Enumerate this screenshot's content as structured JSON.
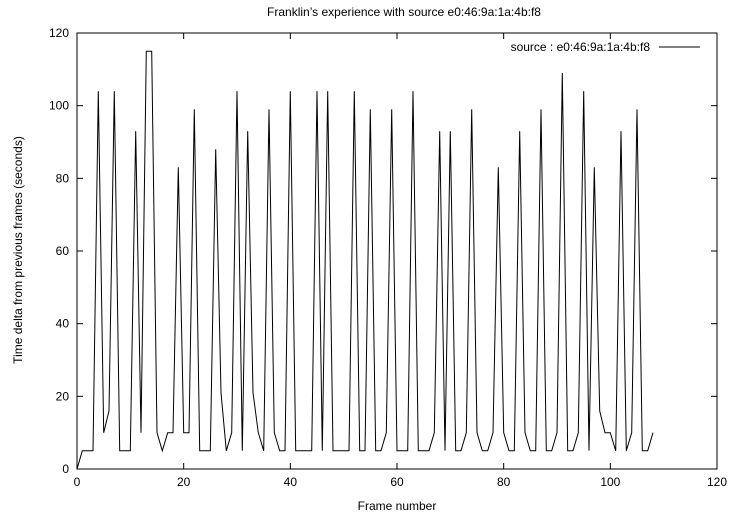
{
  "chart_data": {
    "type": "line",
    "title": "Franklin’s experience with source e0:46:9a:1a:4b:f8",
    "xlabel": "Frame number",
    "ylabel": "Time delta from previous frames (seconds)",
    "xlim": [
      0,
      120
    ],
    "ylim": [
      0,
      120
    ],
    "xticks": [
      0,
      20,
      40,
      60,
      80,
      100,
      120
    ],
    "yticks": [
      0,
      20,
      40,
      60,
      80,
      100,
      120
    ],
    "grid": false,
    "legend_position": "top-right",
    "series": [
      {
        "name": "source : e0:46:9a:1a:4b:f8",
        "color": "#000000",
        "x": [
          0,
          1,
          2,
          3,
          4,
          5,
          6,
          7,
          8,
          9,
          10,
          11,
          12,
          13,
          14,
          15,
          16,
          17,
          18,
          19,
          20,
          21,
          22,
          23,
          24,
          25,
          26,
          27,
          28,
          29,
          30,
          31,
          32,
          33,
          34,
          35,
          36,
          37,
          38,
          39,
          40,
          41,
          42,
          43,
          44,
          45,
          46,
          47,
          48,
          49,
          50,
          51,
          52,
          53,
          54,
          55,
          56,
          57,
          58,
          59,
          60,
          61,
          62,
          63,
          64,
          65,
          66,
          67,
          68,
          69,
          70,
          71,
          72,
          73,
          74,
          75,
          76,
          77,
          78,
          79,
          80,
          81,
          82,
          83,
          84,
          85,
          86,
          87,
          88,
          89,
          90,
          91,
          92,
          93,
          94,
          95,
          96,
          97,
          98,
          99,
          100,
          101,
          102,
          103,
          104,
          105,
          106,
          107,
          108
        ],
        "y": [
          0,
          5,
          5,
          5,
          104,
          10,
          16,
          104,
          5,
          5,
          5,
          93,
          10,
          115,
          115,
          10,
          5,
          10,
          10,
          83,
          10,
          10,
          99,
          5,
          5,
          5,
          88,
          21,
          5,
          10,
          104,
          5,
          93,
          21,
          10,
          5,
          99,
          10,
          5,
          5,
          104,
          5,
          5,
          5,
          5,
          104,
          5,
          104,
          5,
          5,
          5,
          5,
          104,
          5,
          5,
          99,
          5,
          5,
          10,
          99,
          5,
          5,
          5,
          104,
          5,
          5,
          5,
          10,
          93,
          5,
          93,
          5,
          5,
          10,
          99,
          10,
          5,
          5,
          10,
          83,
          10,
          5,
          5,
          93,
          10,
          5,
          5,
          99,
          5,
          5,
          10,
          109,
          5,
          5,
          10,
          104,
          5,
          83,
          16,
          10,
          10,
          5,
          93,
          5,
          10,
          99,
          5,
          5,
          10
        ]
      }
    ]
  }
}
